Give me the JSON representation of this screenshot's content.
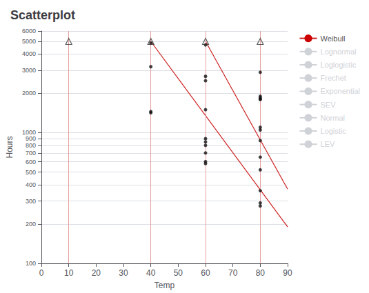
{
  "chart_data": {
    "type": "scatter",
    "title": "Scatterplot",
    "xlabel": "Temp",
    "ylabel": "Hours",
    "log": "y",
    "grid": true,
    "legend": "right",
    "xlim": [
      0,
      90
    ],
    "xticks": [
      0,
      10,
      20,
      30,
      40,
      50,
      60,
      70,
      80,
      90
    ],
    "ylim": [
      100,
      6000
    ],
    "yticks": [
      100,
      200,
      300,
      400,
      500,
      600,
      700,
      800,
      900,
      1000,
      2000,
      3000,
      4000,
      5000,
      6000
    ],
    "points": {
      "x": [
        40,
        40,
        40,
        40,
        60,
        60,
        60,
        60,
        60,
        60,
        60,
        60,
        60,
        60,
        80,
        80,
        80,
        80,
        80,
        80,
        80,
        80,
        80,
        80,
        80,
        80,
        80
      ],
      "values": [
        3200,
        1450,
        1420,
        4850,
        4700,
        2700,
        2500,
        1500,
        900,
        850,
        800,
        700,
        600,
        580,
        2900,
        1900,
        1850,
        1800,
        1800,
        1100,
        1050,
        870,
        650,
        520,
        360,
        290,
        275
      ],
      "color": "#111111",
      "marker": "circle"
    },
    "censored": {
      "x": [
        10,
        40,
        60,
        80
      ],
      "values": [
        5000,
        5000,
        5000,
        5000
      ],
      "color": "#333333",
      "marker": "triangle"
    },
    "vlines": {
      "x": [
        10,
        40,
        60,
        80
      ],
      "color": "#e8a0a0"
    },
    "fit_lines": {
      "name": "Weibull",
      "color": "#cc2020",
      "lines": [
        {
          "x": [
            40,
            90
          ],
          "values": [
            5000,
            190
          ]
        },
        {
          "x": [
            60,
            90
          ],
          "values": [
            5000,
            370
          ]
        }
      ]
    },
    "legend_items": [
      {
        "name": "Weibull",
        "color": "#cc0000",
        "selected": true
      },
      {
        "name": "Lognormal",
        "color": "#228b22",
        "selected": false
      },
      {
        "name": "Loglogistic",
        "color": "#1111cc",
        "selected": false
      },
      {
        "name": "Frechet",
        "color": "#cc6600",
        "selected": false
      },
      {
        "name": "Exponential",
        "color": "#008888",
        "selected": false
      },
      {
        "name": "SEV",
        "color": "#880088",
        "selected": false
      },
      {
        "name": "Normal",
        "color": "#999900",
        "selected": false
      },
      {
        "name": "Logistic",
        "color": "#008888",
        "selected": false
      },
      {
        "name": "LEV",
        "color": "#cc00cc",
        "selected": false
      }
    ]
  }
}
